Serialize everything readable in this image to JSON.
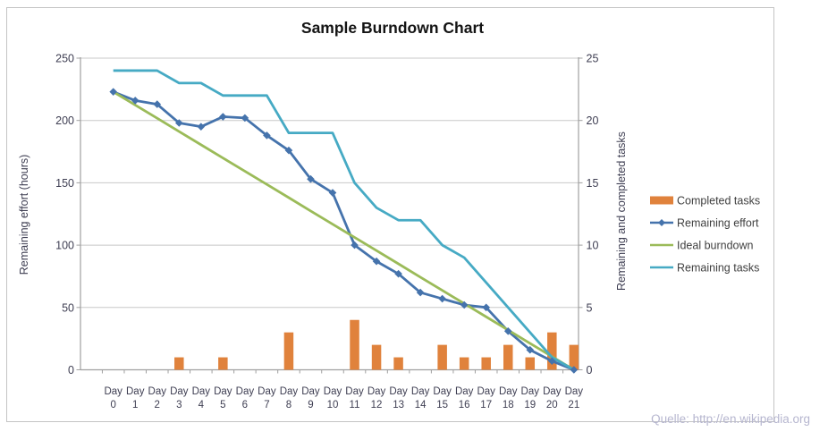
{
  "title": "Sample Burndown Chart",
  "watermark": "Quelle: http://en.wikipedia.org",
  "axes": {
    "left": {
      "title": "Remaining effort (hours)",
      "ticks": [
        250,
        200,
        150,
        100,
        50,
        0
      ],
      "range": [
        0,
        250
      ]
    },
    "right": {
      "title": "Remaining and  completed tasks",
      "ticks": [
        25,
        20,
        15,
        10,
        5,
        0
      ],
      "range": [
        0,
        25
      ]
    },
    "x": {
      "categories": [
        "Day 0",
        "Day 1",
        "Day 2",
        "Day 3",
        "Day 4",
        "Day 5",
        "Day 6",
        "Day 7",
        "Day 8",
        "Day 9",
        "Day 10",
        "Day 11",
        "Day 12",
        "Day 13",
        "Day 14",
        "Day 15",
        "Day 16",
        "Day 17",
        "Day 18",
        "Day 19",
        "Day 20",
        "Day 21"
      ]
    }
  },
  "legend": [
    "Completed tasks",
    "Remaining effort",
    "Ideal burndown",
    "Remaining tasks"
  ],
  "chart_data": {
    "type": "combo (bar + line)",
    "title": "Sample Burndown Chart",
    "categories": [
      "Day 0",
      "Day 1",
      "Day 2",
      "Day 3",
      "Day 4",
      "Day 5",
      "Day 6",
      "Day 7",
      "Day 8",
      "Day 9",
      "Day 10",
      "Day 11",
      "Day 12",
      "Day 13",
      "Day 14",
      "Day 15",
      "Day 16",
      "Day 17",
      "Day 18",
      "Day 19",
      "Day 20",
      "Day 21"
    ],
    "ylabel_left": "Remaining effort (hours)",
    "ylabel_right": "Remaining and  completed tasks",
    "ylim_left": [
      0,
      250
    ],
    "ylim_right": [
      0,
      25
    ],
    "grid": true,
    "legend_position": "right",
    "series": [
      {
        "name": "Completed tasks",
        "type": "bar",
        "axis": "right",
        "color": "#e0823c",
        "values": [
          0,
          0,
          0,
          1,
          0,
          1,
          0,
          0,
          3,
          0,
          0,
          4,
          2,
          1,
          0,
          2,
          1,
          1,
          2,
          1,
          3,
          2
        ]
      },
      {
        "name": "Remaining effort",
        "type": "line",
        "marker": "diamond",
        "axis": "left",
        "color": "#4573ac",
        "values": [
          223,
          216,
          213,
          198,
          195,
          203,
          202,
          188,
          176,
          153,
          142,
          100,
          87,
          77,
          62,
          57,
          52,
          50,
          31,
          16,
          7,
          0
        ]
      },
      {
        "name": "Ideal burndown",
        "type": "line",
        "axis": "left",
        "color": "#9bbb59",
        "values": [
          223,
          212.4,
          201.8,
          191.1,
          180.5,
          169.9,
          159.3,
          148.7,
          138.1,
          127.4,
          116.8,
          106.2,
          95.6,
          85,
          74.3,
          63.7,
          53.1,
          42.5,
          31.9,
          21.2,
          10.6,
          0
        ]
      },
      {
        "name": "Remaining tasks",
        "type": "line",
        "axis": "right",
        "color": "#46aac4",
        "values": [
          24,
          24,
          24,
          23,
          23,
          22,
          22,
          22,
          19,
          19,
          19,
          15,
          13,
          12,
          12,
          10,
          9,
          7,
          5,
          3,
          1,
          0
        ]
      }
    ]
  },
  "colors": {
    "grid": "#c8c8c8",
    "axis": "#a0a0a0",
    "tick_text": "#3e3e52",
    "legend_text": "#404040"
  }
}
